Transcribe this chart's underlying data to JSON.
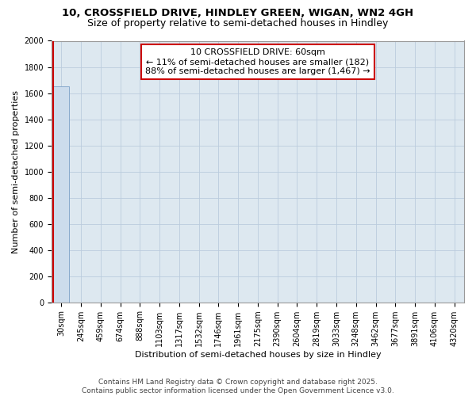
{
  "title_line1": "10, CROSSFIELD DRIVE, HINDLEY GREEN, WIGAN, WN2 4GH",
  "title_line2": "Size of property relative to semi-detached houses in Hindley",
  "xlabel": "Distribution of semi-detached houses by size in Hindley",
  "ylabel": "Number of semi-detached properties",
  "categories": [
    "30sqm",
    "245sqm",
    "459sqm",
    "674sqm",
    "888sqm",
    "1103sqm",
    "1317sqm",
    "1532sqm",
    "1746sqm",
    "1961sqm",
    "2175sqm",
    "2390sqm",
    "2604sqm",
    "2819sqm",
    "3033sqm",
    "3248sqm",
    "3462sqm",
    "3677sqm",
    "3891sqm",
    "4106sqm",
    "4320sqm"
  ],
  "bar_values": [
    1649,
    0,
    0,
    0,
    0,
    0,
    0,
    0,
    0,
    0,
    0,
    0,
    0,
    0,
    0,
    0,
    0,
    0,
    0,
    0,
    0
  ],
  "bar_color": "#ccdcec",
  "bar_edge_color": "#88aacc",
  "ylim": [
    0,
    2000
  ],
  "yticks": [
    0,
    200,
    400,
    600,
    800,
    1000,
    1200,
    1400,
    1600,
    1800,
    2000
  ],
  "annotation_line1": "10 CROSSFIELD DRIVE: 60sqm",
  "annotation_line2": "← 11% of semi-detached houses are smaller (182)",
  "annotation_line3": "88% of semi-detached houses are larger (1,467) →",
  "annotation_box_facecolor": "#ffffff",
  "annotation_box_edgecolor": "#cc0000",
  "red_line_color": "#cc0000",
  "grid_color": "#bbccdd",
  "background_color": "#dde8f0",
  "footer_line1": "Contains HM Land Registry data © Crown copyright and database right 2025.",
  "footer_line2": "Contains public sector information licensed under the Open Government Licence v3.0.",
  "title_fontsize": 9.5,
  "subtitle_fontsize": 9,
  "axis_label_fontsize": 8,
  "tick_fontsize": 7,
  "annotation_fontsize": 8,
  "footer_fontsize": 6.5
}
